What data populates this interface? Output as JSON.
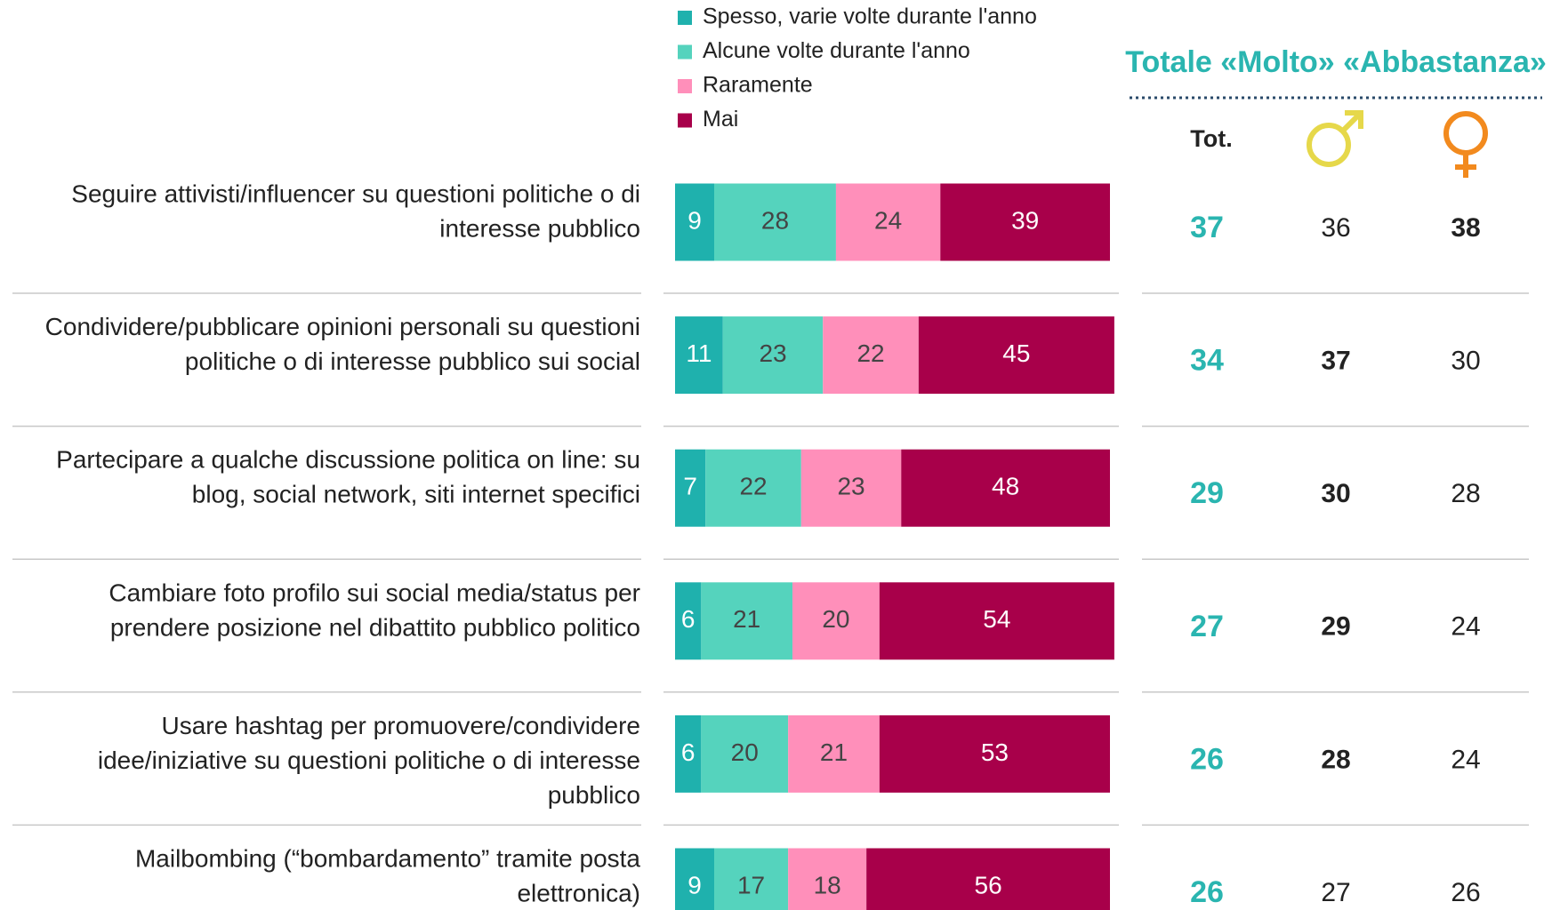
{
  "chart_data": {
    "type": "stacked-bar-horizontal",
    "categories": [
      "Seguire attivisti/influencer su questioni politiche o di interesse pubblico",
      "Condividere/pubblicare opinioni personali su questioni politiche o di interesse pubblico sui social",
      "Partecipare a qualche discussione politica on line: su blog, social network, siti internet specifici",
      "Cambiare foto profilo sui social media/status per prendere posizione nel dibattito pubblico politico",
      "Usare hashtag per promuovere/condividere idee/iniziative su questioni politiche o di interesse pubblico",
      "Mailbombing (“bombardamento” tramite posta elettronica)"
    ],
    "series": [
      {
        "name": "Spesso, varie volte durante l'anno",
        "color": "#1fb1ad",
        "label_color": "#ffffff",
        "values": [
          9,
          11,
          7,
          6,
          6,
          9
        ]
      },
      {
        "name": "Alcune volte durante l'anno",
        "color": "#55d3bd",
        "label_color": "#444444",
        "values": [
          28,
          23,
          22,
          21,
          20,
          17
        ]
      },
      {
        "name": "Raramente",
        "color": "#ff8fba",
        "label_color": "#444444",
        "values": [
          24,
          22,
          23,
          20,
          21,
          18
        ]
      },
      {
        "name": "Mai",
        "color": "#a8004a",
        "label_color": "#ffffff",
        "values": [
          39,
          45,
          48,
          54,
          53,
          56
        ]
      }
    ],
    "xlim": [
      0,
      100
    ],
    "table": {
      "title": "Totale «Molto» «Abbastanza»",
      "total_header": "Tot.",
      "total": [
        37,
        34,
        29,
        27,
        26,
        26
      ],
      "male": [
        36,
        37,
        30,
        29,
        28,
        27
      ],
      "male_bold": [
        false,
        true,
        true,
        true,
        true,
        false
      ],
      "female": [
        38,
        30,
        28,
        24,
        24,
        26
      ],
      "female_bold": [
        true,
        false,
        false,
        false,
        false,
        false
      ]
    }
  }
}
